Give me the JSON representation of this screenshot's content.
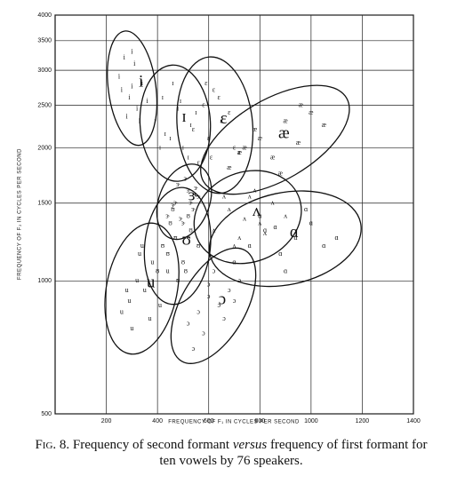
{
  "chart_data": {
    "type": "scatter",
    "x_label": "FREQUENCY OF F₁ IN CYCLES PER SECOND",
    "y_label": "FREQUENCY OF F₂ IN CYCLES PER SECOND",
    "xlim": [
      0,
      1400
    ],
    "xticks": [
      200,
      400,
      600,
      800,
      1000,
      1200,
      1400
    ],
    "ylim": [
      500,
      4000
    ],
    "yticks": [
      500,
      1000,
      1500,
      2000,
      2500,
      3000,
      3500,
      4000
    ],
    "ylog": true,
    "grid": true,
    "color": "#111111",
    "series": [
      {
        "name": "i",
        "x": [
          250,
          270,
          290,
          300,
          310,
          320,
          340,
          280,
          360,
          300,
          260,
          330
        ],
        "values": [
          2900,
          3200,
          2600,
          2750,
          3100,
          2450,
          2800,
          2350,
          2550,
          3300,
          2700,
          2300
        ]
      },
      {
        "name": "ɪ",
        "x": [
          390,
          420,
          450,
          480,
          500,
          530,
          460,
          410,
          550,
          430,
          490,
          520
        ],
        "values": [
          2300,
          2600,
          2100,
          2450,
          2000,
          2250,
          2800,
          2000,
          2400,
          2150,
          2550,
          1900
        ]
      },
      {
        "name": "ɛ",
        "x": [
          540,
          580,
          610,
          650,
          700,
          620,
          560,
          680,
          600,
          720,
          640,
          590
        ],
        "values": [
          2200,
          2500,
          1900,
          2300,
          2000,
          2700,
          1850,
          2400,
          2100,
          1950,
          2600,
          2800
        ]
      },
      {
        "name": "æ",
        "x": [
          680,
          740,
          800,
          850,
          900,
          950,
          1000,
          780,
          880,
          1050,
          720,
          960
        ],
        "values": [
          1800,
          2000,
          2100,
          1900,
          2300,
          2050,
          2400,
          2200,
          1750,
          2250,
          1950,
          2500
        ]
      },
      {
        "name": "ʌ",
        "x": [
          620,
          680,
          720,
          760,
          800,
          850,
          900,
          700,
          780,
          820,
          660,
          740
        ],
        "values": [
          1300,
          1450,
          1250,
          1550,
          1350,
          1500,
          1400,
          1200,
          1600,
          1280,
          1550,
          1380
        ]
      },
      {
        "name": "ɑ",
        "x": [
          700,
          760,
          820,
          880,
          940,
          1000,
          1050,
          900,
          800,
          980,
          860,
          1100
        ],
        "values": [
          1100,
          1200,
          1300,
          1150,
          1250,
          1350,
          1200,
          1050,
          1400,
          1450,
          1320,
          1250
        ]
      },
      {
        "name": "ɔ",
        "x": [
          520,
          560,
          600,
          640,
          680,
          720,
          580,
          620,
          660,
          700,
          540,
          600
        ],
        "values": [
          800,
          850,
          920,
          880,
          950,
          1000,
          760,
          1050,
          820,
          900,
          700,
          980
        ]
      },
      {
        "name": "ʊ",
        "x": [
          400,
          440,
          470,
          500,
          530,
          560,
          450,
          480,
          520,
          420,
          510,
          460
        ],
        "values": [
          1050,
          1150,
          1250,
          1100,
          1300,
          1200,
          1350,
          1000,
          1400,
          1200,
          1050,
          1450
        ]
      },
      {
        "name": "u",
        "x": [
          260,
          290,
          320,
          350,
          380,
          410,
          440,
          300,
          340,
          370,
          280,
          330
        ],
        "values": [
          850,
          900,
          1000,
          950,
          1100,
          880,
          1050,
          780,
          1200,
          820,
          950,
          1150
        ]
      },
      {
        "name": "ɝ",
        "x": [
          440,
          470,
          500,
          520,
          540,
          560,
          480,
          510,
          530,
          490,
          550,
          460
        ],
        "values": [
          1400,
          1500,
          1350,
          1600,
          1450,
          1550,
          1650,
          1700,
          1500,
          1380,
          1620,
          1480
        ]
      }
    ],
    "caption": [
      "Fig. 8.",
      " Frequency of second formant ",
      "versus",
      " frequency of first formant for ten vowels by 76 speakers."
    ]
  }
}
